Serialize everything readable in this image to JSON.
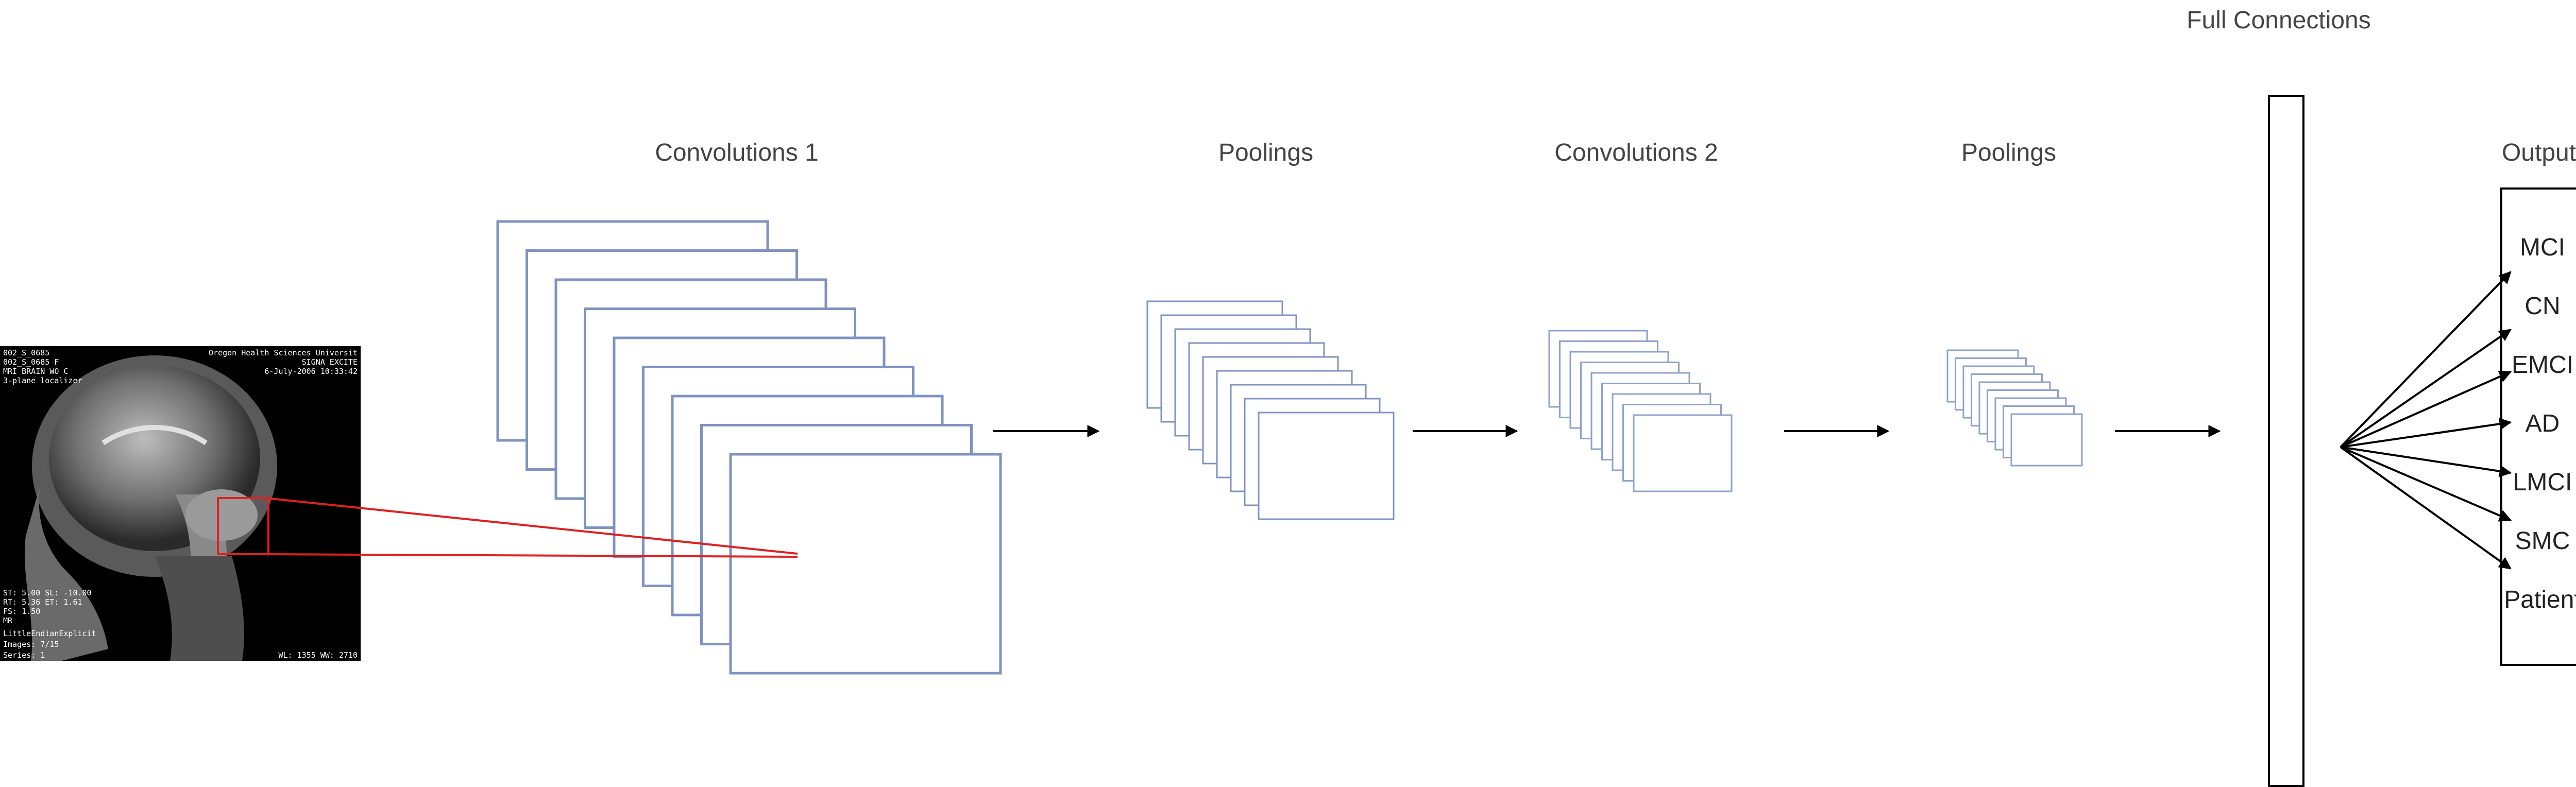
{
  "colors": {
    "feature_map_stroke": "#7f93c0",
    "feature_map_stroke_small": "#8fa2cc",
    "receptive_field": "#e02020",
    "arrow": "#000000",
    "label_text": "#444444"
  },
  "stages": {
    "conv1": "Convolutions 1",
    "pool1": "Poolings",
    "conv2": "Convolutions 2",
    "pool2": "Poolings",
    "fc": "Full Connections",
    "output": "Output"
  },
  "output_classes": [
    "MCI",
    "CN",
    "EMCI",
    "AD",
    "LMCI",
    "SMC",
    "Patient"
  ],
  "mri": {
    "top_left": [
      "002_S_0685",
      "002_S_0685 F",
      "MRI BRAIN WO C",
      "3-plane localizer"
    ],
    "top_right": [
      "Oregon Health Sciences Universit",
      "SIGNA EXCITE",
      "6-July-2006 10:33:42"
    ],
    "bottom_left": [
      "ST: 5.00 SL: -10.00",
      "RT: 5.36 ET: 1.61",
      "FS: 1.50",
      "MR",
      "LittleEndianExplicit",
      "Images: 7/15",
      "Series: 1"
    ],
    "bottom_right": "WL: 1355 WW: 2710"
  }
}
